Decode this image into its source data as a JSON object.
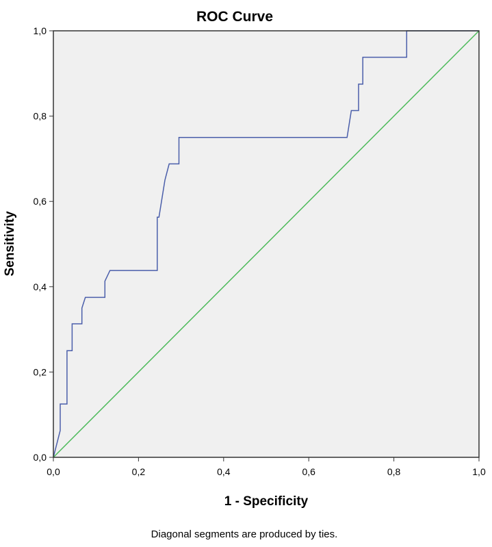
{
  "chart_data": {
    "type": "line",
    "title": "ROC Curve",
    "xlabel": "1 - Specificity",
    "ylabel": "Sensitivity",
    "xlim": [
      0,
      1
    ],
    "ylim": [
      0,
      1
    ],
    "xticks": [
      "0,0",
      "0,2",
      "0,4",
      "0,6",
      "0,8",
      "1,0"
    ],
    "yticks": [
      "0,0",
      "0,2",
      "0,4",
      "0,6",
      "0,8",
      "1,0"
    ],
    "grid": false,
    "legend": "none",
    "footnote": "Diagonal segments are produced by ties.",
    "plot_background": "#f0f0f0",
    "series": [
      {
        "color": "#4a5eaa",
        "x": [
          0.0,
          0.0,
          0.016,
          0.016,
          0.016,
          0.032,
          0.032,
          0.044,
          0.044,
          0.044,
          0.067,
          0.067,
          0.075,
          0.121,
          0.121,
          0.133,
          0.133,
          0.244,
          0.244,
          0.248,
          0.248,
          0.262,
          0.272,
          0.295,
          0.295,
          0.302,
          0.69,
          0.7,
          0.71,
          0.717,
          0.717,
          0.727,
          0.727,
          0.735,
          0.735,
          0.83,
          0.83,
          1.0
        ],
        "y": [
          0.0,
          0.0,
          0.063,
          0.125,
          0.125,
          0.125,
          0.25,
          0.25,
          0.313,
          0.313,
          0.313,
          0.35,
          0.375,
          0.375,
          0.413,
          0.438,
          0.438,
          0.438,
          0.563,
          0.563,
          0.563,
          0.65,
          0.688,
          0.688,
          0.75,
          0.75,
          0.75,
          0.813,
          0.813,
          0.813,
          0.875,
          0.875,
          0.938,
          0.938,
          0.938,
          0.938,
          1.0,
          1.0
        ]
      },
      {
        "color": "#4cba5a",
        "x": [
          0,
          1
        ],
        "y": [
          0,
          1
        ]
      }
    ]
  }
}
